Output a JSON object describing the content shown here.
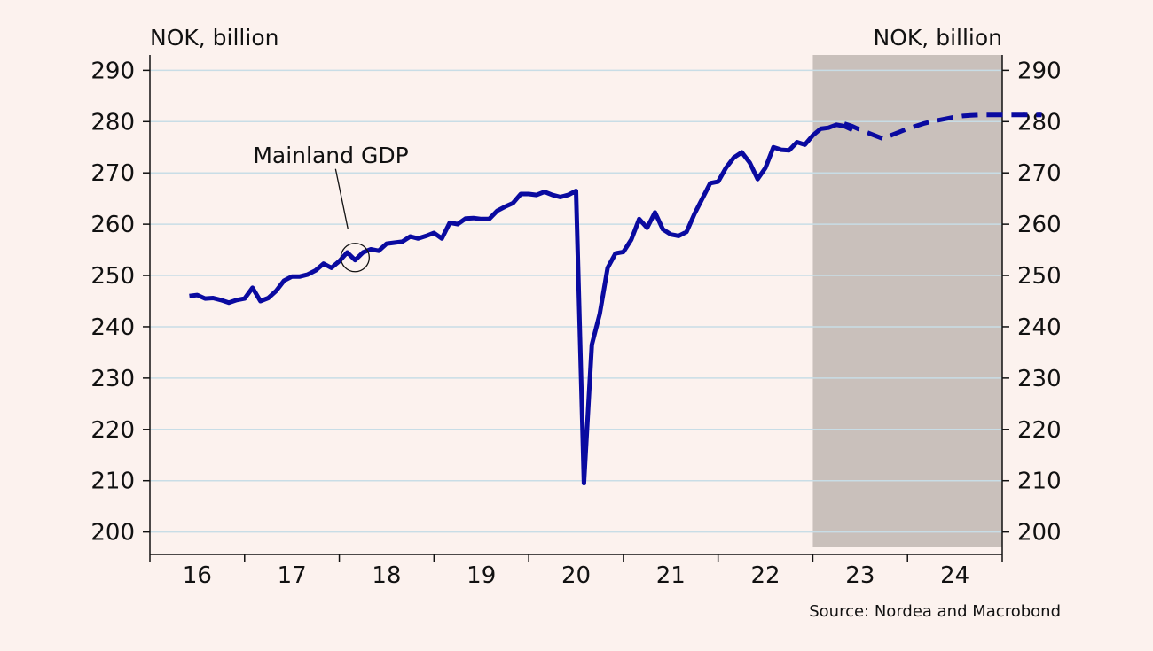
{
  "chart_data": {
    "type": "line",
    "title": "",
    "left_axis_unit": "NOK, billion",
    "right_axis_unit": "NOK, billion",
    "ylim": [
      197,
      293
    ],
    "yticks": [
      200,
      210,
      220,
      230,
      240,
      250,
      260,
      270,
      280,
      290
    ],
    "ytick_labels": [
      "200",
      "210",
      "220",
      "230",
      "240",
      "250",
      "260",
      "270",
      "280",
      "290"
    ],
    "xlim": [
      2015.5,
      2024.5
    ],
    "xtick_labels": [
      "16",
      "17",
      "18",
      "19",
      "20",
      "21",
      "22",
      "23",
      "24"
    ],
    "grid": true,
    "forecast_shading_start": 2022.5,
    "colors": {
      "line": "#0a0aa0",
      "forecast_shade": "#c9c0bb",
      "grid": "#c8dde6",
      "background": "#fcf2ee"
    },
    "series": [
      {
        "name": "Mainland GDP",
        "style": "solid",
        "x": [
          "2015-12",
          "2016-01",
          "2016-02",
          "2016-03",
          "2016-04",
          "2016-05",
          "2016-06",
          "2016-07",
          "2016-08",
          "2016-09",
          "2016-10",
          "2016-11",
          "2016-12",
          "2017-01",
          "2017-02",
          "2017-03",
          "2017-04",
          "2017-05",
          "2017-06",
          "2017-07",
          "2017-08",
          "2017-09",
          "2017-10",
          "2017-11",
          "2017-12",
          "2018-01",
          "2018-02",
          "2018-03",
          "2018-04",
          "2018-05",
          "2018-06",
          "2018-07",
          "2018-08",
          "2018-09",
          "2018-10",
          "2018-11",
          "2018-12",
          "2019-01",
          "2019-02",
          "2019-03",
          "2019-04",
          "2019-05",
          "2019-06",
          "2019-07",
          "2019-08",
          "2019-09",
          "2019-10",
          "2019-11",
          "2019-12",
          "2020-01",
          "2020-02",
          "2020-03",
          "2020-04",
          "2020-05",
          "2020-06",
          "2020-07",
          "2020-08",
          "2020-09",
          "2020-10",
          "2020-11",
          "2020-12",
          "2021-01",
          "2021-02",
          "2021-03",
          "2021-04",
          "2021-05",
          "2021-06",
          "2021-07",
          "2021-08",
          "2021-09",
          "2021-10",
          "2021-11",
          "2021-12",
          "2022-01",
          "2022-02",
          "2022-03",
          "2022-04",
          "2022-05",
          "2022-06",
          "2022-07",
          "2022-08",
          "2022-09",
          "2022-10",
          "2022-11",
          "2022-12"
        ],
        "values": [
          246.0,
          246.2,
          245.5,
          245.6,
          245.2,
          244.7,
          245.2,
          245.5,
          247.6,
          245.0,
          245.6,
          247.0,
          249.0,
          249.8,
          249.8,
          250.2,
          251.0,
          252.3,
          251.5,
          252.8,
          254.5,
          253.0,
          254.5,
          255.1,
          254.8,
          256.2,
          256.4,
          256.6,
          257.6,
          257.2,
          257.7,
          258.3,
          257.2,
          260.3,
          260.0,
          261.1,
          261.2,
          261.0,
          261.0,
          262.6,
          263.4,
          264.1,
          265.9,
          265.9,
          265.7,
          266.3,
          265.7,
          265.3,
          265.7,
          266.5,
          209.5,
          236.5,
          242.5,
          251.5,
          254.3,
          254.6,
          257.0,
          261.0,
          259.3,
          262.3,
          259.0,
          258.0,
          257.7,
          258.5,
          262.0,
          265.0,
          268.0,
          268.3,
          271.0,
          273.0,
          274.0,
          272.0,
          268.8,
          271.0,
          275.0,
          274.5,
          274.4,
          276.0,
          275.5,
          277.3,
          278.6,
          278.8,
          279.4,
          279.1,
          278.4
        ]
      },
      {
        "name": "",
        "style": "dashed",
        "x": [
          "2022-11",
          "2022-12",
          "2023-01",
          "2023-02",
          "2023-03",
          "2023-04",
          "2023-05",
          "2023-06",
          "2023-07",
          "2023-08",
          "2023-09",
          "2023-10",
          "2023-11",
          "2023-12",
          "2024-01",
          "2024-02",
          "2024-03",
          "2024-04",
          "2024-05",
          "2024-06",
          "2024-07",
          "2024-08",
          "2024-09",
          "2024-10",
          "2024-11",
          "2024-12"
        ],
        "values": [
          279.6,
          279.1,
          278.4,
          277.8,
          277.2,
          276.6,
          277.4,
          278.0,
          278.6,
          279.1,
          279.6,
          280.0,
          280.3,
          280.6,
          280.9,
          281.1,
          281.2,
          281.3,
          281.3,
          281.3,
          281.3,
          281.3,
          281.3,
          281.3,
          281.3,
          281.3
        ]
      }
    ],
    "annotations": [
      {
        "text": "Mainland GDP",
        "points_to": {
          "x": "2017-09",
          "y": 253.5
        }
      }
    ],
    "source": "Source: Nordea and Macrobond"
  }
}
